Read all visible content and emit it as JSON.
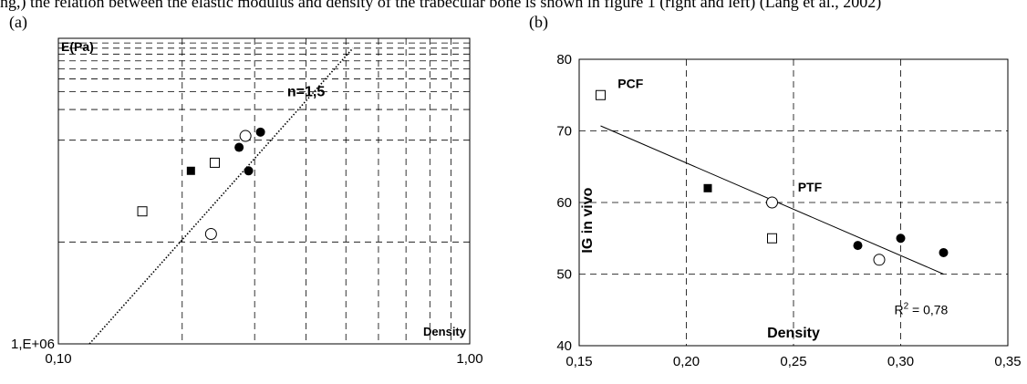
{
  "caption_fragment": "ng,) the relation between the elastic modulus and density of the trabecular bone is shown in figure 1 (right and left) (Lang et al., 2002)",
  "panels": {
    "a": "(a)",
    "b": "(b)"
  },
  "chart_data": [
    {
      "type": "scatter",
      "panel": "(a)",
      "xscale": "log",
      "yscale": "log",
      "xlim": [
        0.1,
        1.0
      ],
      "x_tick_labels": [
        "0,10",
        "1,00"
      ],
      "y_tick_labels": [
        "1,E+06"
      ],
      "ylabel": "E(Pa)",
      "xlabel": "Density",
      "annotation": "n=1,5",
      "grid": true,
      "fit_line": {
        "style": "dotted",
        "x": [
          0.119,
          0.52
        ],
        "y": [
          1000000,
          800000000
        ]
      },
      "series": [
        {
          "marker": "open-square",
          "x": [
            0.16,
            0.24
          ],
          "y": [
            20000000,
            60000000
          ]
        },
        {
          "marker": "filled-square",
          "x": [
            0.21
          ],
          "y": [
            50000000
          ]
        },
        {
          "marker": "open-circle",
          "x": [
            0.235,
            0.285
          ],
          "y": [
            12000000,
            110000000
          ]
        },
        {
          "marker": "filled-circle",
          "x": [
            0.275,
            0.29,
            0.31
          ],
          "y": [
            85000000,
            50000000,
            120000000
          ]
        }
      ]
    },
    {
      "type": "scatter",
      "panel": "(b)",
      "xlim": [
        0.15,
        0.35
      ],
      "ylim": [
        40,
        80
      ],
      "x_ticks": [
        "0,15",
        "0,20",
        "0,25",
        "0,30",
        "0,35"
      ],
      "y_ticks": [
        "40",
        "50",
        "60",
        "70",
        "80"
      ],
      "ylabel": "IG in vivo",
      "xlabel": "Density",
      "annotations": {
        "pcf": "PCF",
        "ptf": "PTF",
        "r2_prefix": "R",
        "r2_sup": "2",
        "r2_value": " = 0,78"
      },
      "grid": true,
      "fit_line": {
        "style": "solid",
        "x": [
          0.16,
          0.32
        ],
        "y": [
          70.7,
          50
        ]
      },
      "series": [
        {
          "marker": "open-square",
          "x": [
            0.16,
            0.24
          ],
          "y": [
            75,
            55
          ]
        },
        {
          "marker": "filled-square",
          "x": [
            0.21
          ],
          "y": [
            62
          ]
        },
        {
          "marker": "open-circle",
          "x": [
            0.24,
            0.29
          ],
          "y": [
            60,
            52
          ]
        },
        {
          "marker": "filled-circle",
          "x": [
            0.28,
            0.3,
            0.32
          ],
          "y": [
            54,
            55,
            53
          ]
        }
      ]
    }
  ]
}
